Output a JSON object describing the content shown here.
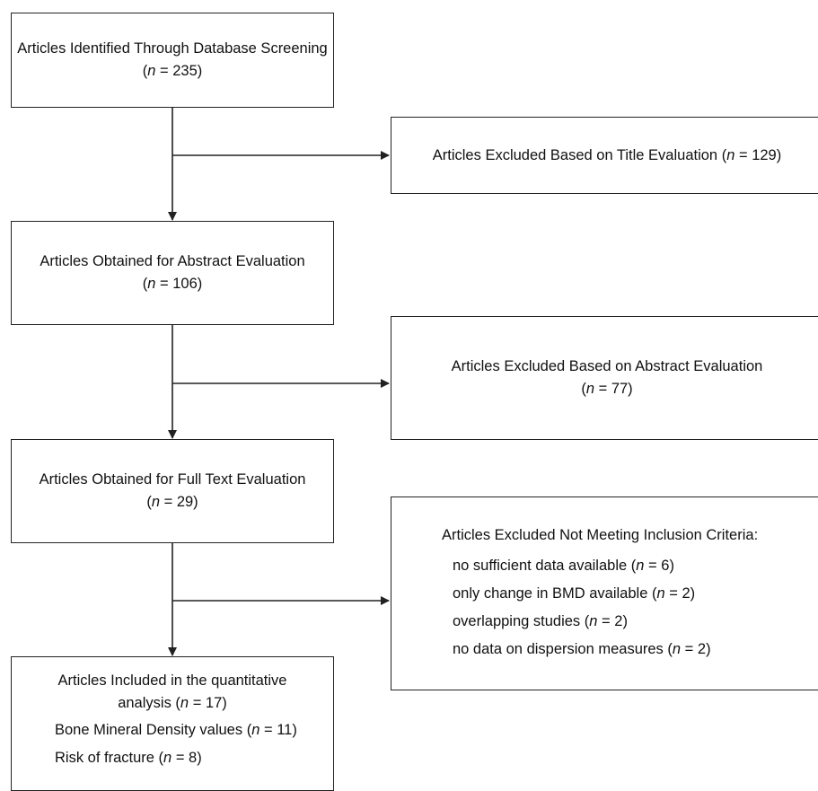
{
  "boxes": {
    "identified": {
      "label": "Articles Identified Through Database Screening",
      "n": "235"
    },
    "excluded_title": {
      "label": "Articles Excluded Based on Title Evaluation",
      "n": "129"
    },
    "abstract": {
      "label": "Articles Obtained for Abstract Evaluation",
      "n": "106"
    },
    "excluded_abstract": {
      "label": "Articles Excluded Based on Abstract Evaluation",
      "n": "77"
    },
    "fulltext": {
      "label": "Articles Obtained for Full Text Evaluation",
      "n": "29"
    },
    "excluded_criteria": {
      "label": "Articles Excluded Not Meeting Inclusion Criteria:",
      "reasons": [
        {
          "label": "no sufficient data available",
          "n": "6"
        },
        {
          "label": "only change in BMD available",
          "n": "2"
        },
        {
          "label": "overlapping studies",
          "n": "2"
        },
        {
          "label": "no data on dispersion measures",
          "n": "2"
        }
      ]
    },
    "included": {
      "label": "Articles Included in the quantitative analysis",
      "n": "17",
      "subgroups": [
        {
          "label": "Bone Mineral Density values",
          "n": "11"
        },
        {
          "label": "Risk of fracture",
          "n": "8"
        }
      ]
    }
  }
}
